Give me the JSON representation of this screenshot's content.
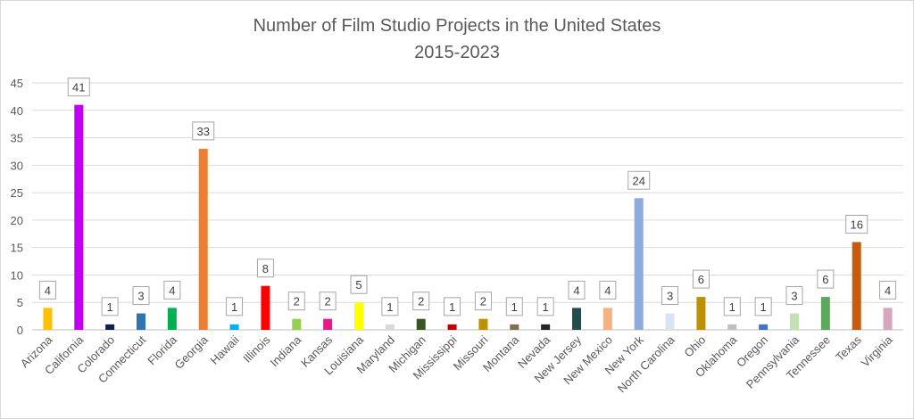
{
  "chart_data": {
    "type": "bar",
    "title": "Number of Film Studio Projects in the United States",
    "subtitle": "2015-2023",
    "xlabel": "",
    "ylabel": "",
    "ylim": [
      0,
      45
    ],
    "yticks": [
      0,
      5,
      10,
      15,
      20,
      25,
      30,
      35,
      40,
      45
    ],
    "grid": true,
    "legend": "none",
    "categories": [
      "Arizona",
      "California",
      "Colorado",
      "Connecticut",
      "Florida",
      "Georgia",
      "Hawaii",
      "Illinois",
      "Indiana",
      "Kansas",
      "Louisiana",
      "Maryland",
      "Michigan",
      "Mississippi",
      "Missouri",
      "Montana",
      "Nevada",
      "New Jersey",
      "New Mexico",
      "New York",
      "North Carolina",
      "Ohio",
      "Oklahoma",
      "Oregon",
      "Pennsylvania",
      "Tennessee",
      "Texas",
      "Virginia"
    ],
    "values": [
      4,
      41,
      1,
      3,
      4,
      33,
      1,
      8,
      2,
      2,
      5,
      1,
      2,
      1,
      2,
      1,
      1,
      4,
      4,
      24,
      3,
      6,
      1,
      1,
      3,
      6,
      16,
      4
    ],
    "colors": [
      "#FFC000",
      "#C000F0",
      "#0F2050",
      "#2E75B6",
      "#00B050",
      "#ED7D31",
      "#00B0F0",
      "#FF0000",
      "#92D050",
      "#E6198C",
      "#FFFF00",
      "#D9D9D9",
      "#375623",
      "#C00000",
      "#BF9000",
      "#7F6F50",
      "#262626",
      "#264D4D",
      "#F4B183",
      "#8FAADC",
      "#DAE3F3",
      "#BF9000",
      "#BFBFBF",
      "#4472C4",
      "#C5E0B4",
      "#5BAA5B",
      "#C55A11",
      "#D5A6BD"
    ]
  }
}
